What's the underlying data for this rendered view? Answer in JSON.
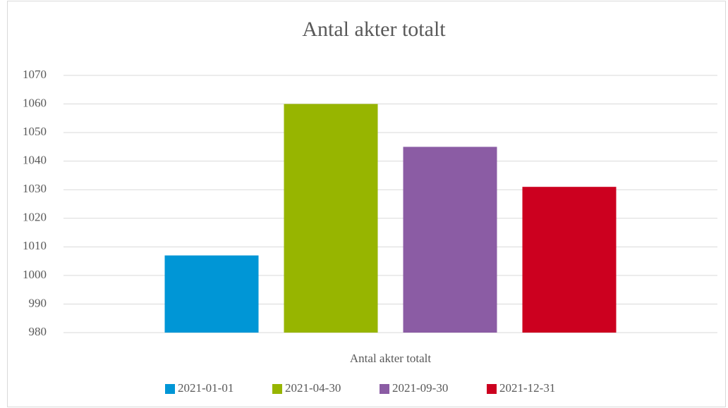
{
  "chart_data": {
    "type": "bar",
    "title": "Antal akter totalt",
    "categories": [
      "Antal akter totalt"
    ],
    "series": [
      {
        "name": "2021-01-01",
        "color": "#0096d6",
        "values": [
          1007
        ]
      },
      {
        "name": "2021-04-30",
        "color": "#97b500",
        "values": [
          1060
        ]
      },
      {
        "name": "2021-09-30",
        "color": "#8b5ca4",
        "values": [
          1045
        ]
      },
      {
        "name": "2021-12-31",
        "color": "#cc001f",
        "values": [
          1031
        ]
      }
    ],
    "ylim": [
      980,
      1070
    ],
    "yticks": [
      980,
      990,
      1000,
      1010,
      1020,
      1030,
      1040,
      1050,
      1060,
      1070
    ],
    "grid": true,
    "legend": "bottom"
  }
}
